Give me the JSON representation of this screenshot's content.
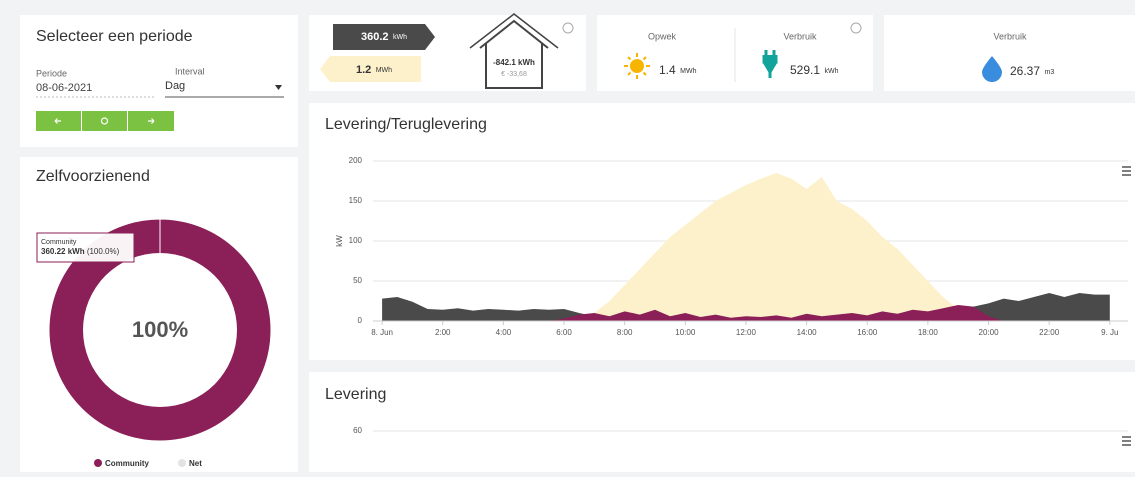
{
  "period": {
    "title": "Selecteer een periode",
    "period_label": "Periode",
    "period_value": "08-06-2021",
    "interval_label": "Interval",
    "interval_value": "Dag"
  },
  "summary": {
    "import_value": 360.2,
    "import_unit": "kWh",
    "export_value": 1.2,
    "export_unit": "MWh",
    "net": "-842.1 kWh",
    "cost": "€ -33,68"
  },
  "production": {
    "label": "Opwek",
    "value": 1.4,
    "unit": "MWh"
  },
  "consumption": {
    "label": "Verbruik",
    "value": 529.1,
    "unit": "kWh"
  },
  "water": {
    "label": "Verbruik",
    "value": 26.37,
    "unit": "m3"
  },
  "self_sufficiency": {
    "title": "Zelfvoorzienend",
    "center_label": "100%",
    "tooltip": {
      "name": "Community",
      "value": "360.22 kWh",
      "share": "(100.0%)"
    },
    "chart": {
      "type": "pie",
      "series": [
        {
          "name": "Community",
          "color": "#8b1f57",
          "value": 100
        },
        {
          "name": "Net",
          "color": "#e3e3e3",
          "value": 0
        }
      ]
    }
  },
  "flow_chart": {
    "type": "area",
    "title": "Levering/Teruglevering",
    "ylabel": "kW",
    "ylim": [
      0,
      200
    ],
    "yticks": [
      0,
      50,
      100,
      150,
      200
    ],
    "grid": true,
    "xlim": [
      -0.3,
      24.6
    ],
    "xticks": [
      {
        "value": 0,
        "label": "8. Jun"
      },
      {
        "value": 2,
        "label": "2:00"
      },
      {
        "value": 4,
        "label": "4:00"
      },
      {
        "value": 6,
        "label": "6:00"
      },
      {
        "value": 8,
        "label": "8:00"
      },
      {
        "value": 10,
        "label": "10:00"
      },
      {
        "value": 12,
        "label": "12:00"
      },
      {
        "value": 14,
        "label": "14:00"
      },
      {
        "value": 16,
        "label": "16:00"
      },
      {
        "value": 18,
        "label": "18:00"
      },
      {
        "value": 20,
        "label": "20:00"
      },
      {
        "value": 22,
        "label": "22:00"
      },
      {
        "value": 24,
        "label": "9. Ju"
      }
    ],
    "x": [
      0,
      0.5,
      1,
      1.5,
      2,
      2.5,
      3,
      3.5,
      4,
      4.5,
      5,
      5.5,
      6,
      6.5,
      7,
      7.5,
      8,
      8.5,
      9,
      9.5,
      10,
      10.5,
      11,
      11.5,
      12,
      12.5,
      13,
      13.5,
      14,
      14.5,
      15,
      15.5,
      16,
      16.5,
      17,
      17.5,
      18,
      18.5,
      19,
      19.5,
      20,
      20.5,
      21,
      21.5,
      22,
      22.5,
      23,
      23.5,
      24
    ],
    "series": [
      {
        "color": "#fdf1cc",
        "values": [
          0,
          0,
          0,
          0,
          0,
          0,
          0,
          0,
          0,
          0,
          0,
          0,
          0,
          3,
          10,
          25,
          45,
          65,
          85,
          105,
          120,
          135,
          150,
          160,
          170,
          178,
          185,
          178,
          165,
          180,
          150,
          140,
          125,
          105,
          90,
          70,
          50,
          30,
          15,
          6,
          1,
          0,
          0,
          0,
          0,
          0,
          0,
          0,
          0
        ]
      },
      {
        "color": "#4a4a4a",
        "values": [
          28,
          30,
          24,
          15,
          14,
          16,
          13,
          15,
          14,
          13,
          15,
          14,
          15,
          10,
          6,
          3,
          2,
          1,
          1,
          1,
          1,
          1,
          1,
          1,
          1,
          1,
          1,
          1,
          1,
          1,
          1,
          1,
          1,
          2,
          3,
          5,
          8,
          10,
          14,
          18,
          22,
          28,
          25,
          30,
          35,
          30,
          35,
          33,
          33
        ]
      },
      {
        "color": "#8b1f57",
        "values": [
          0,
          0,
          0,
          0,
          0,
          0,
          0,
          0,
          0,
          0,
          0,
          0,
          3,
          8,
          10,
          6,
          12,
          8,
          14,
          6,
          10,
          5,
          8,
          4,
          6,
          5,
          7,
          4,
          9,
          6,
          8,
          10,
          7,
          12,
          9,
          14,
          12,
          16,
          20,
          18,
          6,
          0,
          0,
          0,
          0,
          0,
          0,
          0,
          0
        ]
      }
    ]
  },
  "delivery_chart": {
    "title": "Levering",
    "yticks": [
      60
    ]
  }
}
